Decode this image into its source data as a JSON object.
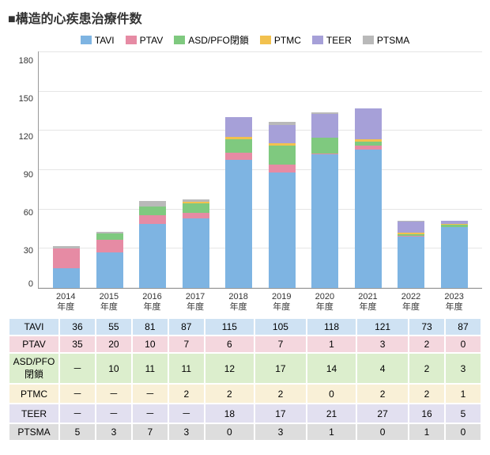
{
  "title": "■構造的心疾患治療件数",
  "chart": {
    "type": "stacked-bar",
    "ymax": 180,
    "ytick_step": 30,
    "yticks": [
      "180",
      "150",
      "120",
      "90",
      "60",
      "30",
      "0"
    ],
    "categories": [
      "2014\n年度",
      "2015\n年度",
      "2016\n年度",
      "2017\n年度",
      "2018\n年度",
      "2019\n年度",
      "2020\n年度",
      "2021\n年度",
      "2022\n年度",
      "2023\n年度"
    ],
    "series": [
      {
        "key": "TAVI",
        "label": "TAVI",
        "color": "#7eb4e2",
        "row_bg": "#cfe2f3"
      },
      {
        "key": "PTAV",
        "label": "PTAV",
        "color": "#e68ba4",
        "row_bg": "#f4d7de"
      },
      {
        "key": "ASDPFO",
        "label": "ASD/PFO閉鎖",
        "color": "#7fc97f",
        "row_bg": "#dceecd"
      },
      {
        "key": "PTMC",
        "label": "PTMC",
        "color": "#f2c14e",
        "row_bg": "#f9f0d7"
      },
      {
        "key": "TEER",
        "label": "TEER",
        "color": "#a6a0d8",
        "row_bg": "#e2e0f0"
      },
      {
        "key": "PTSMA",
        "label": "PTSMA",
        "color": "#b9b9b9",
        "row_bg": "#dddddd"
      }
    ],
    "data": {
      "TAVI": [
        36,
        55,
        81,
        87,
        115,
        105,
        118,
        121,
        73,
        87
      ],
      "PTAV": [
        35,
        20,
        10,
        7,
        6,
        7,
        1,
        3,
        2,
        0
      ],
      "ASDPFO": [
        null,
        10,
        11,
        11,
        12,
        17,
        14,
        4,
        2,
        3
      ],
      "PTMC": [
        null,
        null,
        null,
        2,
        2,
        2,
        0,
        2,
        2,
        1
      ],
      "TEER": [
        null,
        null,
        null,
        null,
        18,
        17,
        21,
        27,
        16,
        5
      ],
      "PTSMA": [
        5,
        3,
        7,
        3,
        0,
        3,
        1,
        0,
        1,
        0
      ]
    },
    "display": {
      "TAVI": [
        "36",
        "55",
        "81",
        "87",
        "115",
        "105",
        "118",
        "121",
        "73",
        "87"
      ],
      "PTAV": [
        "35",
        "20",
        "10",
        "7",
        "6",
        "7",
        "1",
        "3",
        "2",
        "0"
      ],
      "ASDPFO": [
        "－",
        "10",
        "11",
        "11",
        "12",
        "17",
        "14",
        "4",
        "2",
        "3"
      ],
      "PTMC": [
        "－",
        "－",
        "－",
        "2",
        "2",
        "2",
        "0",
        "2",
        "2",
        "1"
      ],
      "TEER": [
        "－",
        "－",
        "－",
        "－",
        "18",
        "17",
        "21",
        "27",
        "16",
        "5"
      ],
      "PTSMA": [
        "5",
        "3",
        "7",
        "3",
        "0",
        "3",
        "1",
        "0",
        "1",
        "0"
      ]
    },
    "background_color": "#ffffff",
    "grid_color": "#e5e5e5",
    "axis_color": "#999999",
    "label_fontsize": 11
  }
}
